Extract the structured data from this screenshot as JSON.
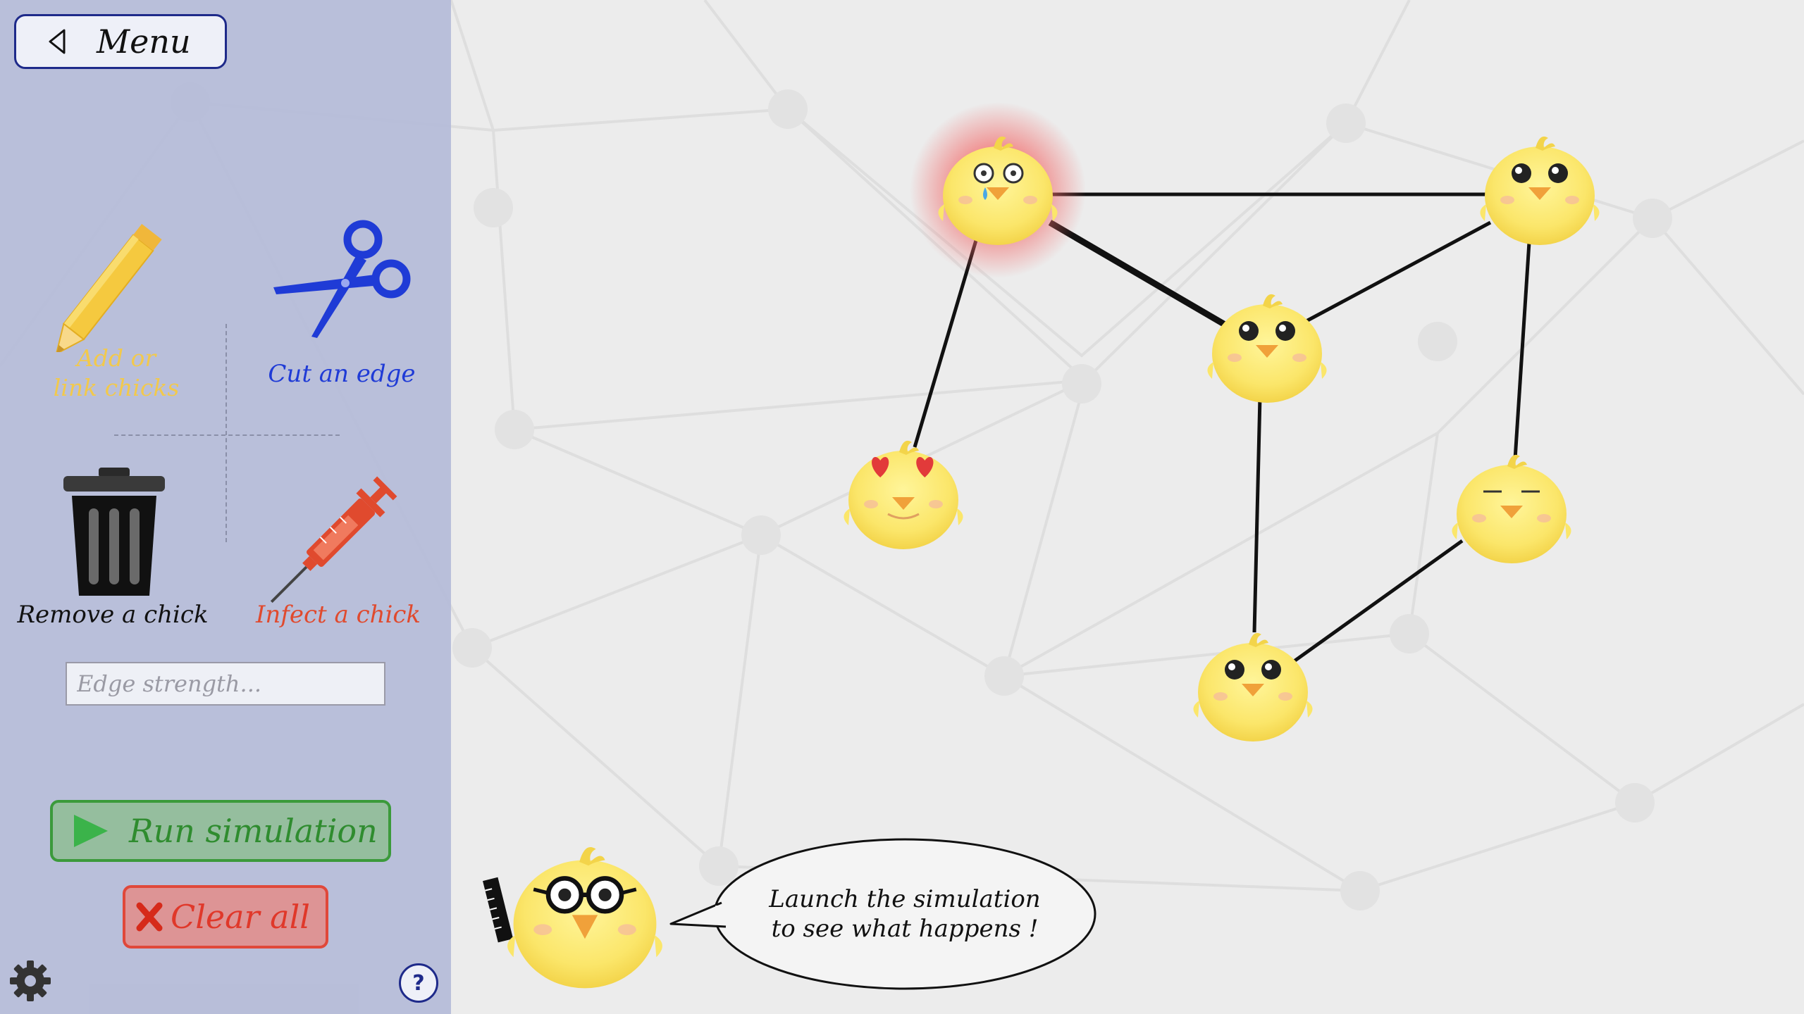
{
  "menu": {
    "label": "Menu",
    "icon": "back-triangle-icon"
  },
  "tools": {
    "add": {
      "label": "Add or\nlink chicks",
      "icon": "pencil-icon",
      "color": "#f2c94c"
    },
    "cut": {
      "label": "Cut an edge",
      "icon": "scissors-icon",
      "color": "#1f3bd6"
    },
    "remove": {
      "label": "Remove a chick",
      "icon": "trash-icon",
      "color": "#111111"
    },
    "infect": {
      "label": "Infect a chick",
      "icon": "syringe-icon",
      "color": "#e04a2e"
    }
  },
  "edge_strength": {
    "placeholder": "Edge strength...",
    "value": ""
  },
  "run": {
    "label": "Run simulation",
    "icon": "play-icon",
    "color": "#3b9a3b"
  },
  "clear": {
    "label": "Clear all",
    "icon": "cross-icon",
    "color": "#e0382a"
  },
  "settings": {
    "icon": "gear-icon"
  },
  "help": {
    "label": "?"
  },
  "narrator": {
    "speech": "Launch the simulation\nto see what happens !",
    "icon": "professor-chick-icon"
  },
  "graph": {
    "nodes": [
      {
        "id": "n1",
        "state": "infected",
        "face": "crying"
      },
      {
        "id": "n2",
        "state": "healthy",
        "face": "normal"
      },
      {
        "id": "n3",
        "state": "healthy",
        "face": "normal"
      },
      {
        "id": "n4",
        "state": "healthy",
        "face": "heart-eyes"
      },
      {
        "id": "n5",
        "state": "healthy",
        "face": "sleepy"
      },
      {
        "id": "n6",
        "state": "healthy",
        "face": "normal"
      }
    ],
    "edges": [
      {
        "from": "n1",
        "to": "n2",
        "strength": "normal"
      },
      {
        "from": "n1",
        "to": "n3",
        "strength": "strong"
      },
      {
        "from": "n1",
        "to": "n4",
        "strength": "normal"
      },
      {
        "from": "n2",
        "to": "n3",
        "strength": "normal"
      },
      {
        "from": "n2",
        "to": "n5",
        "strength": "normal"
      },
      {
        "from": "n3",
        "to": "n6",
        "strength": "normal"
      },
      {
        "from": "n5",
        "to": "n6",
        "strength": "normal"
      }
    ]
  }
}
